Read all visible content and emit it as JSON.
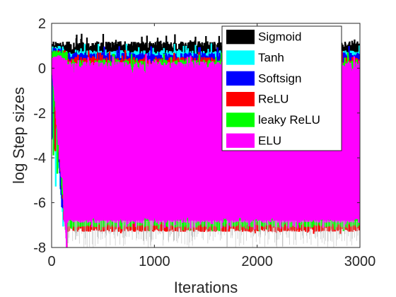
{
  "chart_data": {
    "type": "line",
    "title": "",
    "xlabel": "Iterations",
    "ylabel": "log Step sizes",
    "xlim": [
      0,
      3000
    ],
    "ylim": [
      -8,
      2
    ],
    "xticks": [
      0,
      1000,
      2000,
      3000
    ],
    "yticks": [
      -8,
      -6,
      -4,
      -2,
      0,
      2
    ],
    "grid": false,
    "legend_position": "top-right",
    "series": [
      {
        "name": "Sigmoid",
        "color": "#000000",
        "initial_level": 0.9,
        "initial_iterations": 120,
        "upper_band": [
          0.4,
          1.2
        ],
        "lower_band": [
          0.0,
          0.8
        ],
        "spike_min": -6.5
      },
      {
        "name": "Tanh",
        "color": "#00ffff",
        "initial_level": 0.7,
        "initial_iterations": 120,
        "upper_band": [
          0.2,
          0.8
        ],
        "lower_band": [
          -6.5,
          -6.0
        ],
        "spike_min": -7.0
      },
      {
        "name": "Softsign",
        "color": "#0000ff",
        "initial_level": 0.6,
        "initial_iterations": 120,
        "upper_band": [
          0.0,
          0.7
        ],
        "lower_band": [
          -6.3,
          -5.8
        ],
        "spike_min": -7.0
      },
      {
        "name": "ReLU",
        "color": "#ff0000",
        "initial_level": 0.5,
        "initial_iterations": 150,
        "upper_band": [
          -0.2,
          0.5
        ],
        "lower_band": [
          -7.3,
          -6.9
        ],
        "spike_min": -7.4
      },
      {
        "name": "leaky ReLU",
        "color": "#00ff00",
        "initial_level": 0.5,
        "initial_iterations": 150,
        "upper_band": [
          -0.5,
          0.4
        ],
        "lower_band": [
          -7.1,
          -6.6
        ],
        "spike_min": -7.3
      },
      {
        "name": "ELU",
        "color": "#ff00ff",
        "initial_level": 0.3,
        "initial_iterations": 150,
        "upper_band": [
          -0.6,
          0.3
        ],
        "lower_band": [
          -6.9,
          -6.4
        ],
        "spike_min": -7.2
      }
    ]
  }
}
